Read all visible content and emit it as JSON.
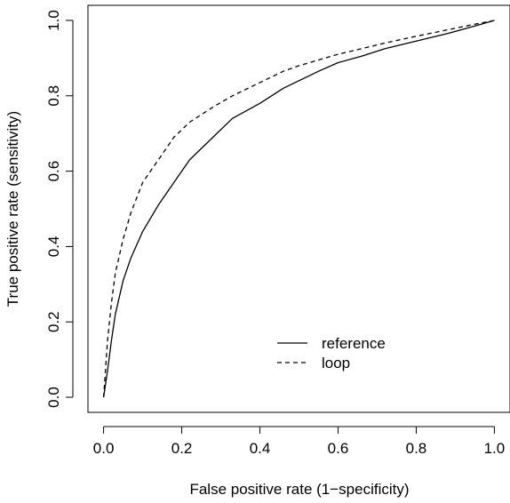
{
  "chart_data": {
    "type": "line",
    "title": "",
    "xlabel": "False positive rate (1−specificity)",
    "ylabel": "True positive rate (sensitivity)",
    "xlim": [
      -0.04,
      1.04
    ],
    "ylim": [
      -0.04,
      1.04
    ],
    "xticks": [
      0.0,
      0.2,
      0.4,
      0.6,
      0.8,
      1.0
    ],
    "xtick_labels": [
      "0.0",
      "0.2",
      "0.4",
      "0.6",
      "0.8",
      "1.0"
    ],
    "yticks": [
      0.0,
      0.2,
      0.4,
      0.6,
      0.8,
      1.0
    ],
    "ytick_labels": [
      "0.0",
      "0.2",
      "0.4",
      "0.6",
      "0.8",
      "1.0"
    ],
    "grid": false,
    "legend_position": "bottom-right",
    "series": [
      {
        "name": "reference",
        "line_style": "solid",
        "color": "#000000",
        "x": [
          0.0,
          0.01,
          0.02,
          0.03,
          0.05,
          0.07,
          0.1,
          0.14,
          0.18,
          0.22,
          0.28,
          0.33,
          0.4,
          0.46,
          0.5,
          0.55,
          0.6,
          0.66,
          0.72,
          0.8,
          0.88,
          0.95,
          1.0
        ],
        "y": [
          0.0,
          0.07,
          0.15,
          0.22,
          0.31,
          0.37,
          0.44,
          0.51,
          0.57,
          0.63,
          0.69,
          0.74,
          0.78,
          0.82,
          0.84,
          0.865,
          0.888,
          0.905,
          0.925,
          0.945,
          0.965,
          0.985,
          1.0
        ]
      },
      {
        "name": "loop",
        "line_style": "dashed",
        "color": "#000000",
        "x": [
          0.0,
          0.01,
          0.02,
          0.03,
          0.05,
          0.07,
          0.1,
          0.14,
          0.18,
          0.22,
          0.28,
          0.33,
          0.4,
          0.46,
          0.5,
          0.55,
          0.6,
          0.66,
          0.72,
          0.8,
          0.88,
          0.95,
          1.0
        ],
        "y": [
          0.0,
          0.15,
          0.25,
          0.33,
          0.42,
          0.49,
          0.57,
          0.63,
          0.69,
          0.73,
          0.77,
          0.8,
          0.835,
          0.865,
          0.88,
          0.895,
          0.91,
          0.925,
          0.94,
          0.958,
          0.975,
          0.99,
          1.0
        ]
      }
    ]
  }
}
